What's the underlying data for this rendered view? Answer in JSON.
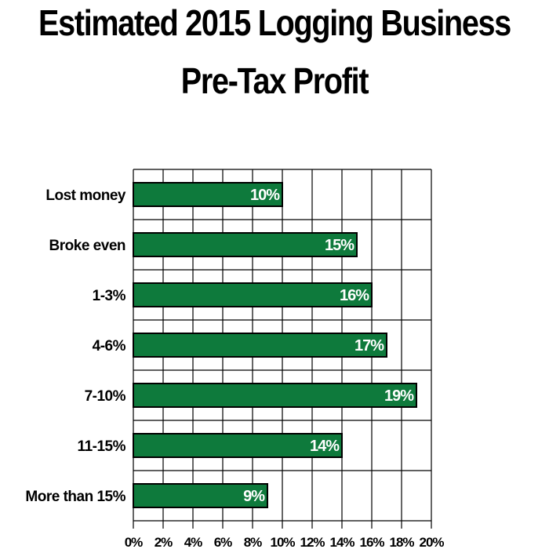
{
  "chart_data": {
    "type": "bar",
    "orientation": "horizontal",
    "title_lines": [
      "Estimated 2015 Logging Business",
      "Pre-Tax Profit"
    ],
    "categories": [
      "Lost money",
      "Broke even",
      "1-3%",
      "4-6%",
      "7-10%",
      "11-15%",
      "More than 15%"
    ],
    "values": [
      10,
      15,
      16,
      17,
      19,
      14,
      9
    ],
    "data_labels": [
      "10%",
      "15%",
      "16%",
      "17%",
      "19%",
      "14%",
      "9%"
    ],
    "xlim": [
      0,
      20
    ],
    "x_ticks": [
      "0%",
      "2%",
      "4%",
      "6%",
      "8%",
      "10%",
      "12%",
      "14%",
      "16%",
      "18%",
      "20%"
    ],
    "grid": true,
    "bar_color": "#0e7a3c",
    "xlabel": "",
    "ylabel": ""
  }
}
